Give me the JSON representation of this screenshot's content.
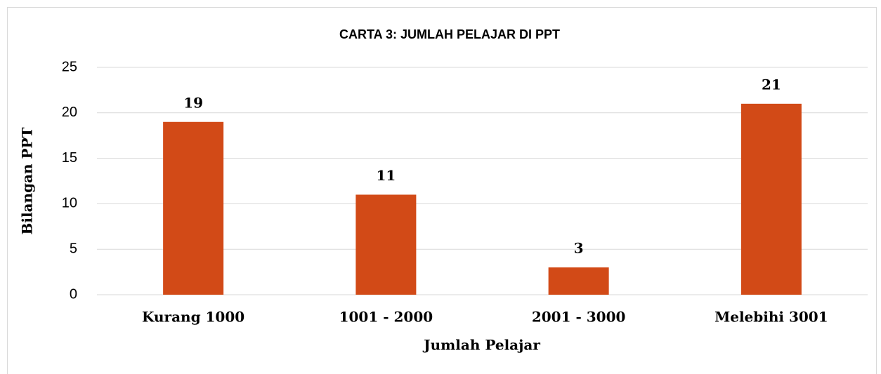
{
  "chart_data": {
    "type": "bar",
    "title": "CARTA 3: JUMLAH PELAJAR DI PPT",
    "x_label": "Jumlah Pelajar",
    "y_label": "Bilangan PPT",
    "categories": [
      "Kurang 1000",
      "1001 - 2000",
      "2001 - 3000",
      "Melebihi 3001"
    ],
    "values": [
      19,
      11,
      3,
      21
    ],
    "color": "#d24a17",
    "ylim": [
      0,
      25
    ],
    "yticks": [
      0,
      5,
      10,
      15,
      20,
      25
    ],
    "grid": true
  }
}
